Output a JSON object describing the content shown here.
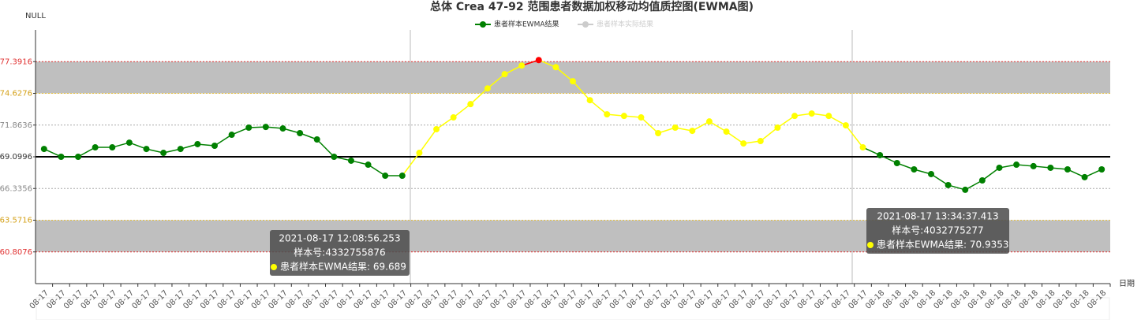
{
  "chart_data": {
    "type": "line",
    "title": "总体  Crea 47-92 范围患者数据加权移动均值质控图(EWMA图)",
    "y_axis_label": "NULL",
    "x_axis_label": "日期",
    "categories": [
      "08-17",
      "08-17",
      "08-17",
      "08-17",
      "08-17",
      "08-17",
      "08-17",
      "08-17",
      "08-17",
      "08-17",
      "08-17",
      "08-17",
      "08-17",
      "08-17",
      "08-17",
      "08-17",
      "08-17",
      "08-17",
      "08-17",
      "08-17",
      "08-17",
      "08-17",
      "08-17",
      "08-17",
      "08-17",
      "08-17",
      "08-17",
      "08-17",
      "08-17",
      "08-17",
      "08-17",
      "08-17",
      "08-17",
      "08-17",
      "08-17",
      "08-17",
      "08-17",
      "08-17",
      "08-17",
      "08-17",
      "08-17",
      "08-17",
      "08-17",
      "08-17",
      "08-17",
      "08-17",
      "08-17",
      "08-17",
      "08-17",
      "08-18",
      "08-18",
      "08-18",
      "08-18",
      "08-18",
      "08-18",
      "08-18",
      "08-18",
      "08-18",
      "08-18",
      "08-18",
      "08-18",
      "08-18",
      "08-18"
    ],
    "series": [
      {
        "name": "患者样本EWMA结果",
        "color": "#008000",
        "values": [
          69.78,
          69.1,
          69.1,
          69.92,
          69.92,
          70.33,
          69.78,
          69.44,
          69.78,
          70.2,
          70.06,
          71.02,
          71.64,
          71.7,
          71.57,
          71.16,
          70.61,
          69.1,
          68.76,
          68.41,
          67.45,
          67.45,
          69.44,
          71.5,
          72.53,
          73.69,
          75.06,
          76.3,
          77.05,
          77.53,
          76.91,
          75.68,
          74.03,
          72.8,
          72.66,
          72.53,
          71.16,
          71.64,
          71.36,
          72.18,
          71.29,
          70.26,
          70.47,
          71.64,
          72.66,
          72.87,
          72.66,
          71.84,
          69.92,
          69.24,
          68.55,
          68.0,
          67.59,
          66.63,
          66.22,
          67.04,
          68.14,
          68.41,
          68.28,
          68.14,
          68.0,
          67.32,
          68.0
        ],
        "point_colors": [
          "#008000",
          "#008000",
          "#008000",
          "#008000",
          "#008000",
          "#008000",
          "#008000",
          "#008000",
          "#008000",
          "#008000",
          "#008000",
          "#008000",
          "#008000",
          "#008000",
          "#008000",
          "#008000",
          "#008000",
          "#008000",
          "#008000",
          "#008000",
          "#008000",
          "#008000",
          "#ffff00",
          "#ffff00",
          "#ffff00",
          "#ffff00",
          "#ffff00",
          "#ffff00",
          "#ffff00",
          "#ff0000",
          "#ffff00",
          "#ffff00",
          "#ffff00",
          "#ffff00",
          "#ffff00",
          "#ffff00",
          "#ffff00",
          "#ffff00",
          "#ffff00",
          "#ffff00",
          "#ffff00",
          "#ffff00",
          "#ffff00",
          "#ffff00",
          "#ffff00",
          "#ffff00",
          "#ffff00",
          "#ffff00",
          "#ffff00",
          "#008000",
          "#008000",
          "#008000",
          "#008000",
          "#008000",
          "#008000",
          "#008000",
          "#008000",
          "#008000",
          "#008000",
          "#008000",
          "#008000",
          "#008000",
          "#008000"
        ]
      },
      {
        "name": "患者样本实际结果",
        "color": "#cccccc",
        "visible": false
      }
    ],
    "ylim": [
      58.0436,
      80.1556
    ],
    "yticks": [
      60.8076,
      63.5716,
      66.3356,
      69.0996,
      71.8636,
      74.6276,
      77.3916
    ],
    "ytick_colors": [
      "#e03030",
      "#d4a017",
      "#888888",
      "#333333",
      "#888888",
      "#d4a017",
      "#e03030"
    ],
    "bands": [
      {
        "from": 74.6276,
        "to": 77.3916,
        "color": "#bfbfbf"
      },
      {
        "from": 60.8076,
        "to": 63.5716,
        "color": "#bfbfbf"
      }
    ],
    "reference_lines": [
      {
        "value": 77.3916,
        "color": "#e03030",
        "style": "dotted"
      },
      {
        "value": 74.6276,
        "color": "#e6c040",
        "style": "dotted"
      },
      {
        "value": 71.8636,
        "color": "#aaaaaa",
        "style": "dotted"
      },
      {
        "value": 69.0996,
        "color": "#000000",
        "style": "solid"
      },
      {
        "value": 66.3356,
        "color": "#aaaaaa",
        "style": "dotted"
      },
      {
        "value": 63.5716,
        "color": "#e6c040",
        "style": "dotted"
      },
      {
        "value": 60.8076,
        "color": "#e03030",
        "style": "dotted"
      }
    ],
    "tooltips": [
      {
        "time": "2021-08-17 12:08:56.253",
        "sample": "样本号:4332755876",
        "text": "患者样本EWMA结果: 69.689",
        "color": "#ffff00"
      },
      {
        "time": "2021-08-17 13:34:37.413",
        "sample": "样本号:4032775277",
        "text": "患者样本EWMA结果: 70.9353",
        "color": "#ffff00"
      }
    ]
  }
}
